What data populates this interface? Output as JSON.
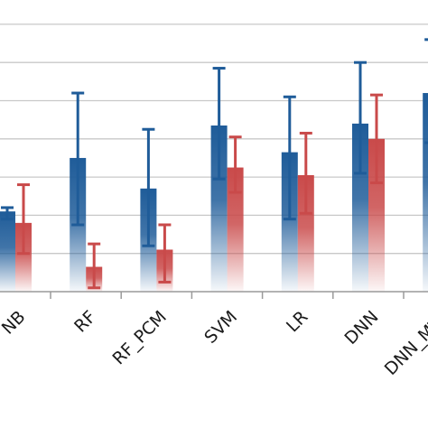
{
  "chart_data": {
    "type": "bar",
    "categories": [
      "NB",
      "RF",
      "RF_PCM",
      "SVM",
      "LR",
      "DNN",
      "DNN_MTL"
    ],
    "ylim": [
      0,
      7
    ],
    "grid": true,
    "series": [
      {
        "color": "#1f5c99",
        "values": [
          2.1,
          3.5,
          2.7,
          4.35,
          3.65,
          4.4,
          5.2
        ],
        "error_low": [
          0.2,
          1.75,
          1.5,
          1.4,
          1.75,
          1.3,
          1.3
        ],
        "error_high": [
          0.1,
          1.7,
          1.55,
          1.5,
          1.45,
          1.6,
          1.4
        ]
      },
      {
        "color": "#c94a4a",
        "values": [
          1.8,
          0.65,
          1.1,
          3.25,
          3.05,
          4.0,
          4.5
        ],
        "error_low": [
          0.8,
          0.55,
          0.85,
          0.65,
          1.0,
          1.15,
          1.4
        ],
        "error_high": [
          1.0,
          0.6,
          0.65,
          0.8,
          1.1,
          1.15,
          1.3
        ]
      }
    ],
    "xlabel": "",
    "ylabel": ""
  }
}
